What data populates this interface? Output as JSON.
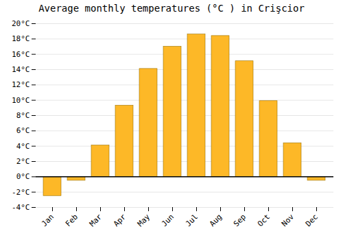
{
  "chart_data": {
    "type": "bar",
    "title": "Average monthly temperatures (°C ) in Crişcior",
    "categories": [
      "Jan",
      "Feb",
      "Mar",
      "Apr",
      "May",
      "Jun",
      "Jul",
      "Aug",
      "Sep",
      "Oct",
      "Nov",
      "Dec"
    ],
    "values": [
      -2.5,
      -0.5,
      4.1,
      9.3,
      14.1,
      17.0,
      18.6,
      18.4,
      15.1,
      9.9,
      4.4,
      -0.5
    ],
    "color": "#FDB827",
    "ylim": [
      -4,
      20
    ],
    "yticks": [
      {
        "value": -4,
        "label": "-4°C"
      },
      {
        "value": -2,
        "label": "-2°C"
      },
      {
        "value": 0,
        "label": "0°C"
      },
      {
        "value": 2,
        "label": "2°C"
      },
      {
        "value": 4,
        "label": "4°C"
      },
      {
        "value": 6,
        "label": "6°C"
      },
      {
        "value": 8,
        "label": "8°C"
      },
      {
        "value": 10,
        "label": "10°C"
      },
      {
        "value": 12,
        "label": "12°C"
      },
      {
        "value": 14,
        "label": "14°C"
      },
      {
        "value": 16,
        "label": "16°C"
      },
      {
        "value": 18,
        "label": "18°C"
      },
      {
        "value": 20,
        "label": "20°C"
      }
    ],
    "grid": true
  }
}
